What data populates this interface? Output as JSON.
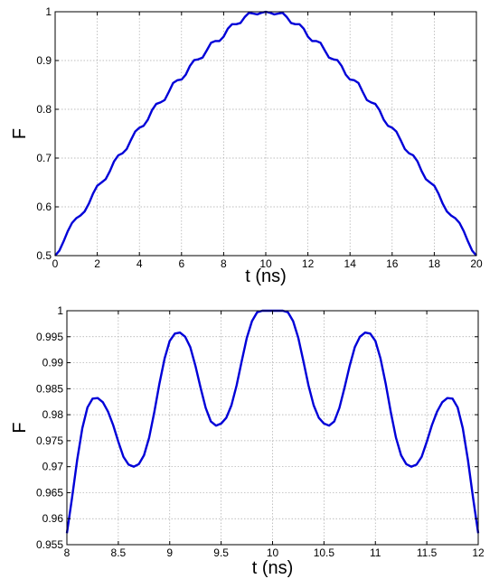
{
  "chart_data": [
    {
      "type": "line",
      "xlabel": "t (ns)",
      "ylabel": "F",
      "xlim": [
        0,
        20
      ],
      "ylim": [
        0.5,
        1
      ],
      "xticks": [
        0,
        2,
        4,
        6,
        8,
        10,
        12,
        14,
        16,
        18,
        20
      ],
      "xtick_labels": [
        "0",
        "2",
        "4",
        "6",
        "8",
        "10",
        "12",
        "14",
        "16",
        "18",
        "20"
      ],
      "yticks": [
        0.5,
        0.6,
        0.7,
        0.8,
        0.9,
        1
      ],
      "ytick_labels": [
        "0.5",
        "0.6",
        "0.7",
        "0.8",
        "0.9",
        "1"
      ],
      "grid": true,
      "color": "#0000d8",
      "series": [
        {
          "x": [
            0,
            0.2,
            0.4,
            0.6,
            0.8,
            1,
            1.2,
            1.4,
            1.6,
            1.8,
            2,
            2.2,
            2.4,
            2.6,
            2.8,
            3,
            3.2,
            3.4,
            3.6,
            3.8,
            4,
            4.2,
            4.4,
            4.6,
            4.8,
            5,
            5.2,
            5.4,
            5.6,
            5.8,
            6,
            6.2,
            6.4,
            6.6,
            6.8,
            7,
            7.2,
            7.4,
            7.6,
            7.8,
            8,
            8.2,
            8.4,
            8.6,
            8.8,
            9,
            9.2,
            9.4,
            9.6,
            9.8,
            10,
            10.2,
            10.4,
            10.6,
            10.8,
            11,
            11.2,
            11.4,
            11.6,
            11.8,
            12,
            12.2,
            12.4,
            12.6,
            12.8,
            13,
            13.2,
            13.4,
            13.6,
            13.8,
            14,
            14.2,
            14.4,
            14.6,
            14.8,
            15,
            15.2,
            15.4,
            15.6,
            15.8,
            16,
            16.2,
            16.4,
            16.6,
            16.8,
            17,
            17.2,
            17.4,
            17.6,
            17.8,
            18,
            18.2,
            18.4,
            18.6,
            18.8,
            19,
            19.2,
            19.4,
            19.6,
            19.8,
            20
          ],
          "y": [
            0.5,
            0.5102,
            0.5291,
            0.5501,
            0.5669,
            0.5766,
            0.5822,
            0.5905,
            0.6065,
            0.6272,
            0.6433,
            0.6499,
            0.6569,
            0.6733,
            0.6935,
            0.7057,
            0.7098,
            0.7187,
            0.7372,
            0.7544,
            0.7622,
            0.7662,
            0.7786,
            0.7982,
            0.811,
            0.8141,
            0.819,
            0.8359,
            0.854,
            0.8596,
            0.8609,
            0.8708,
            0.889,
            0.9008,
            0.9025,
            0.9061,
            0.9208,
            0.9363,
            0.9399,
            0.9399,
            0.949,
            0.9653,
            0.9745,
            0.9744,
            0.977,
            0.9891,
            0.9977,
            0.9963,
            0.9946,
            0.9979,
            1.0,
            0.9979,
            0.9946,
            0.9963,
            0.9977,
            0.9891,
            0.977,
            0.9744,
            0.9745,
            0.9653,
            0.949,
            0.9399,
            0.9399,
            0.9363,
            0.9208,
            0.9061,
            0.9025,
            0.9008,
            0.889,
            0.8708,
            0.8609,
            0.8596,
            0.854,
            0.8359,
            0.819,
            0.8141,
            0.811,
            0.7982,
            0.7786,
            0.7662,
            0.7622,
            0.7544,
            0.7372,
            0.7187,
            0.7098,
            0.7057,
            0.6935,
            0.6733,
            0.6569,
            0.6499,
            0.6433,
            0.6272,
            0.6065,
            0.5905,
            0.5822,
            0.5766,
            0.5669,
            0.5501,
            0.5291,
            0.5102,
            0.5
          ]
        }
      ]
    },
    {
      "type": "line",
      "xlabel": "t (ns)",
      "ylabel": "F",
      "xlim": [
        8,
        12
      ],
      "ylim": [
        0.955,
        1
      ],
      "xticks": [
        8,
        8.5,
        9,
        9.5,
        10,
        10.5,
        11,
        11.5,
        12
      ],
      "xtick_labels": [
        "8",
        "8.5",
        "9",
        "9.5",
        "10",
        "10.5",
        "11",
        "11.5",
        "12"
      ],
      "yticks": [
        0.955,
        0.96,
        0.965,
        0.97,
        0.975,
        0.98,
        0.985,
        0.99,
        0.995,
        1
      ],
      "ytick_labels": [
        "0.955",
        "0.96",
        "0.965",
        "0.97",
        "0.975",
        "0.98",
        "0.985",
        "0.99",
        "0.995",
        "1"
      ],
      "grid": true,
      "color": "#0000d8",
      "series": [
        {
          "x": [
            8,
            8.05,
            8.1,
            8.15,
            8.2,
            8.25,
            8.3,
            8.35,
            8.4,
            8.45,
            8.5,
            8.55,
            8.6,
            8.65,
            8.7,
            8.75,
            8.8,
            8.85,
            8.9,
            8.95,
            9,
            9.05,
            9.1,
            9.15,
            9.2,
            9.25,
            9.3,
            9.35,
            9.4,
            9.45,
            9.5,
            9.55,
            9.6,
            9.65,
            9.7,
            9.75,
            9.8,
            9.85,
            9.9,
            9.95,
            10,
            10.05,
            10.1,
            10.15,
            10.2,
            10.25,
            10.3,
            10.35,
            10.4,
            10.45,
            10.5,
            10.55,
            10.6,
            10.65,
            10.7,
            10.75,
            10.8,
            10.85,
            10.9,
            10.95,
            11,
            11.05,
            11.1,
            11.15,
            11.2,
            11.25,
            11.3,
            11.35,
            11.4,
            11.45,
            11.5,
            11.55,
            11.6,
            11.65,
            11.7,
            11.75,
            11.8,
            11.85,
            11.9,
            11.95,
            12
          ],
          "y": [
            0.9572,
            0.964,
            0.9713,
            0.9774,
            0.9814,
            0.9831,
            0.9832,
            0.9824,
            0.9806,
            0.978,
            0.9748,
            0.9719,
            0.9704,
            0.97,
            0.9705,
            0.9722,
            0.9756,
            0.9805,
            0.986,
            0.9908,
            0.9942,
            0.9956,
            0.9958,
            0.995,
            0.993,
            0.9894,
            0.9852,
            0.9813,
            0.9787,
            0.9779,
            0.9783,
            0.9794,
            0.9818,
            0.9856,
            0.9903,
            0.9948,
            0.998,
            0.9997,
            1.0,
            1.0,
            1.0,
            1.0,
            1.0,
            0.9997,
            0.998,
            0.9948,
            0.9903,
            0.9856,
            0.9818,
            0.9794,
            0.9783,
            0.9779,
            0.9787,
            0.9813,
            0.9852,
            0.9894,
            0.993,
            0.995,
            0.9958,
            0.9956,
            0.9942,
            0.9908,
            0.986,
            0.9805,
            0.9756,
            0.9722,
            0.9705,
            0.97,
            0.9704,
            0.9719,
            0.9748,
            0.978,
            0.9806,
            0.9824,
            0.9832,
            0.9831,
            0.9814,
            0.9774,
            0.9713,
            0.964,
            0.9572
          ]
        }
      ]
    }
  ]
}
